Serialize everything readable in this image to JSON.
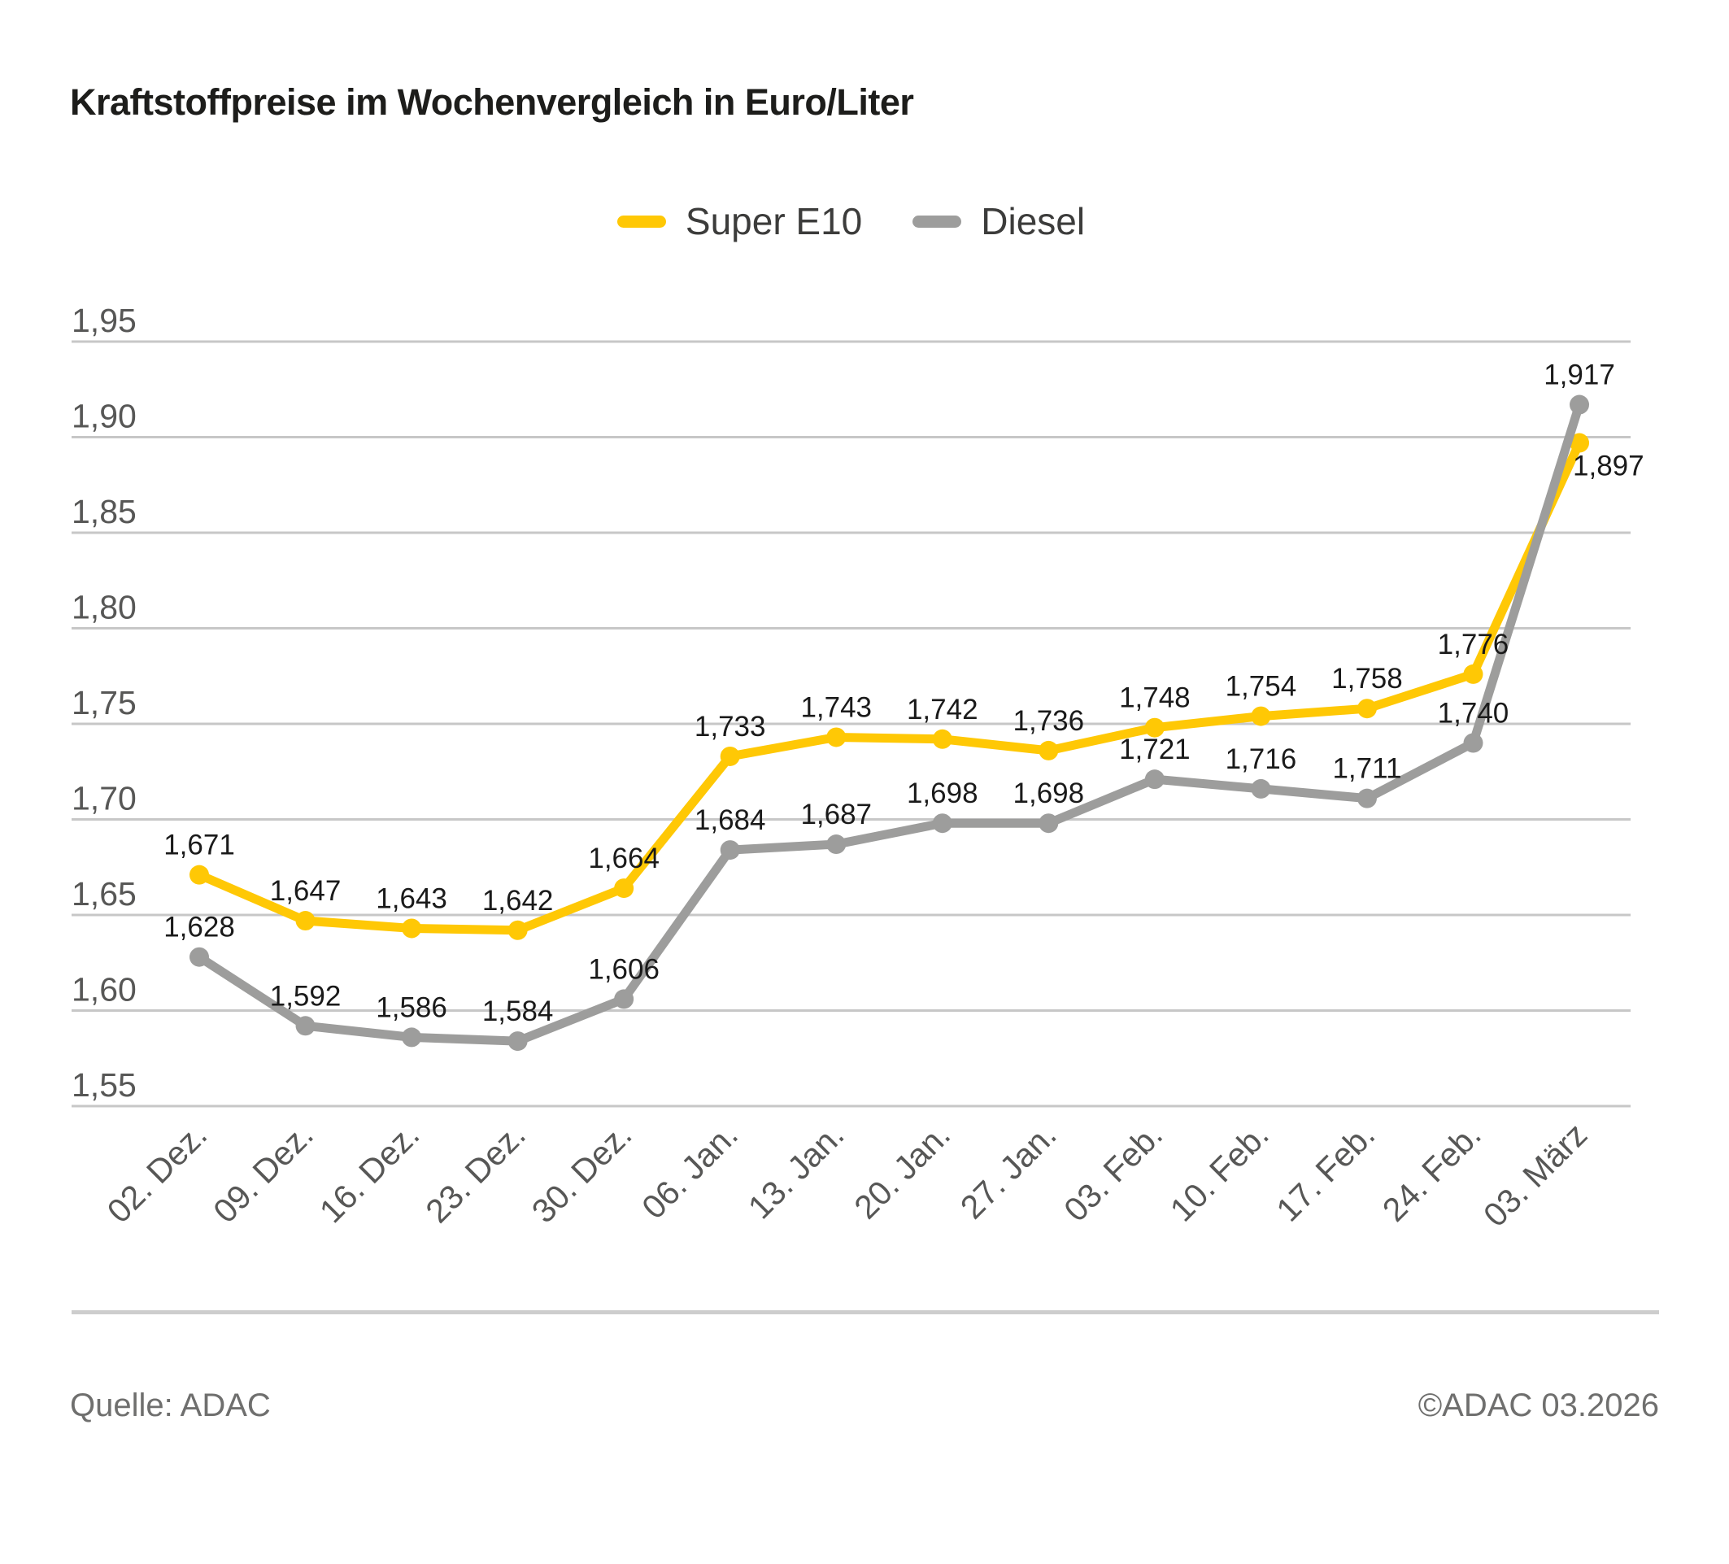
{
  "title": "Kraftstoffpreise im Wochenvergleich in Euro/Liter",
  "legend": {
    "items": [
      {
        "label": "Super E10",
        "color": "#FFC805"
      },
      {
        "label": "Diesel",
        "color": "#9D9D9C"
      }
    ]
  },
  "chart_data": {
    "type": "line",
    "title": "Kraftstoffpreise im Wochenvergleich in Euro/Liter",
    "unit": "Euro/Liter",
    "categories": [
      "02. Dez.",
      "09. Dez.",
      "16. Dez.",
      "23. Dez.",
      "30. Dez.",
      "06. Jan.",
      "13. Jan.",
      "20. Jan.",
      "27. Jan.",
      "03. Feb.",
      "10. Feb.",
      "17. Feb.",
      "24. Feb.",
      "03. März"
    ],
    "series": [
      {
        "name": "Super E10",
        "color": "#FFC805",
        "values": [
          1.671,
          1.647,
          1.643,
          1.642,
          1.664,
          1.733,
          1.743,
          1.742,
          1.736,
          1.748,
          1.754,
          1.758,
          1.776,
          1.897
        ],
        "labels": [
          "1,671",
          "1,647",
          "1,643",
          "1,642",
          "1,664",
          "1,733",
          "1,743",
          "1,742",
          "1,736",
          "1,748",
          "1,754",
          "1,758",
          "1,776",
          "1,897"
        ]
      },
      {
        "name": "Diesel",
        "color": "#9D9D9C",
        "values": [
          1.628,
          1.592,
          1.586,
          1.584,
          1.606,
          1.684,
          1.687,
          1.698,
          1.698,
          1.721,
          1.716,
          1.711,
          1.74,
          1.917
        ],
        "labels": [
          "1,628",
          "1,592",
          "1,586",
          "1,584",
          "1,606",
          "1,684",
          "1,687",
          "1,698",
          "1,698",
          "1,721",
          "1,716",
          "1,711",
          "1,740",
          "1,917"
        ]
      }
    ],
    "ylim": [
      1.55,
      1.95
    ],
    "yticks": [
      {
        "value": 1.95,
        "label": "1,95"
      },
      {
        "value": 1.9,
        "label": "1,90"
      },
      {
        "value": 1.85,
        "label": "1,85"
      },
      {
        "value": 1.8,
        "label": "1,80"
      },
      {
        "value": 1.75,
        "label": "1,75"
      },
      {
        "value": 1.7,
        "label": "1,70"
      },
      {
        "value": 1.65,
        "label": "1,65"
      },
      {
        "value": 1.6,
        "label": "1,60"
      },
      {
        "value": 1.55,
        "label": "1,55"
      }
    ],
    "grid": "horizontal",
    "legend_position": "top-center"
  },
  "footer": {
    "source": "Quelle: ADAC",
    "copyright": "©ADAC 03.2026"
  },
  "colors": {
    "title_text": "#1d1d1b",
    "axis_text": "#575756",
    "data_label_text": "#1a1a1a",
    "grid_line": "#c7c7c7",
    "divider": "#cdcdcd",
    "footer_text": "#6f6f6e",
    "background": "#ffffff"
  }
}
